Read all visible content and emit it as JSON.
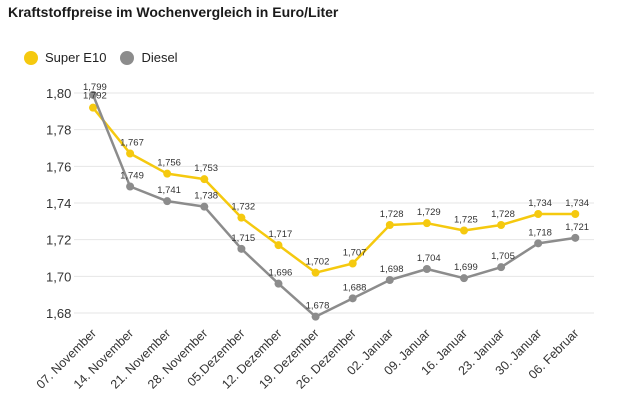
{
  "title": "Kraftstoffpreise im Wochenvergleich in Euro/Liter",
  "colors": {
    "super": "#f5c90f",
    "diesel": "#8c8c8c",
    "grid": "#e6e6e6"
  },
  "chart_data": {
    "type": "line",
    "title": "Kraftstoffpreise im Wochenvergleich in Euro/Liter",
    "categories": [
      "07. November",
      "14. November",
      "21. November",
      "28. November",
      "05.Dezember",
      "12. Dezember",
      "19. Dezember",
      "26. Dezember",
      "02. Januar",
      "09. Januar",
      "16. Januar",
      "23. Januar",
      "30. Januar",
      "06. Februar"
    ],
    "series": [
      {
        "name": "Super E10",
        "color": "#f5c90f",
        "values": [
          1.792,
          1.767,
          1.756,
          1.753,
          1.732,
          1.717,
          1.702,
          1.707,
          1.728,
          1.729,
          1.725,
          1.728,
          1.734,
          1.734
        ],
        "labels": [
          "1,792",
          "1,767",
          "1,756",
          "1,753",
          "1,732",
          "1,717",
          "1,702",
          "1,707",
          "1,728",
          "1,729",
          "1,725",
          "1,728",
          "1,734",
          "1,734"
        ]
      },
      {
        "name": "Diesel",
        "color": "#8c8c8c",
        "values": [
          1.799,
          1.749,
          1.741,
          1.738,
          1.715,
          1.696,
          1.678,
          1.688,
          1.698,
          1.704,
          1.699,
          1.705,
          1.718,
          1.721
        ],
        "labels": [
          "1,799",
          "1,749",
          "1,741",
          "1,738",
          "1,715",
          "1,696",
          "1,678",
          "1,688",
          "1,698",
          "1,704",
          "1,699",
          "1,705",
          "1,718",
          "1,721"
        ]
      }
    ],
    "yticks": [
      1.68,
      1.7,
      1.72,
      1.74,
      1.76,
      1.78,
      1.8
    ],
    "ytick_labels": [
      "1,68",
      "1,70",
      "1,72",
      "1,74",
      "1,76",
      "1,78",
      "1,80"
    ],
    "ylim": [
      1.68,
      1.8
    ],
    "grid": true,
    "legend": "top-left"
  }
}
